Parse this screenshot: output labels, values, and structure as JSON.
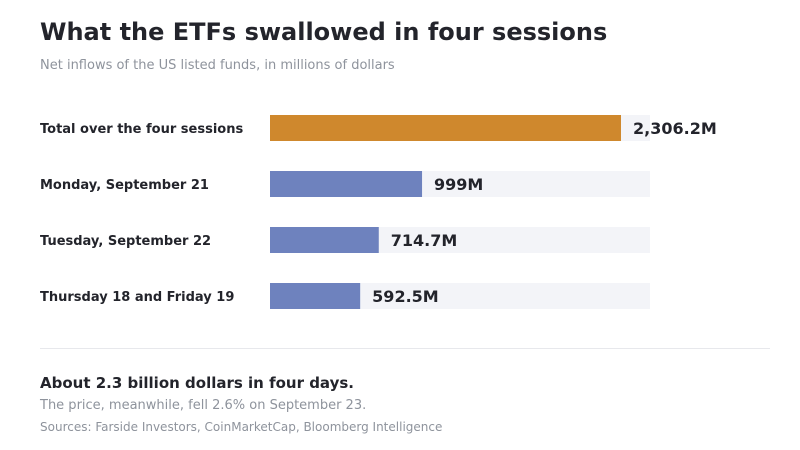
{
  "header": {
    "title": "What the ETFs swallowed in four sessions",
    "subtitle": "Net inflows of the US listed funds, in millions of dollars"
  },
  "chart_data": {
    "type": "bar",
    "orientation": "horizontal",
    "title": "What the ETFs swallowed in four sessions",
    "subtitle": "Net inflows of the US listed funds, in millions of dollars",
    "xlabel": "",
    "ylabel": "",
    "grid": false,
    "legend": "none",
    "xlim": [
      0,
      2500
    ],
    "categories": [
      "Total over the four sessions",
      "Monday, September 21",
      "Tuesday, September 22",
      "Thursday 18 and Friday 19"
    ],
    "values": [
      2306.2,
      999,
      714.7,
      592.5
    ],
    "value_labels": [
      "2,306.2M",
      "999M",
      "714.7M",
      "592.5M"
    ],
    "colors": {
      "highlight": "#cf882d",
      "bar": "#6e82be",
      "track": "#f3f4f8"
    }
  },
  "footer": {
    "headline": "About 2.3 billion dollars in four days.",
    "note": "The price, meanwhile, fell 2.6% on September 23.",
    "sources": "Sources: Farside Investors, CoinMarketCap, Bloomberg Intelligence"
  }
}
